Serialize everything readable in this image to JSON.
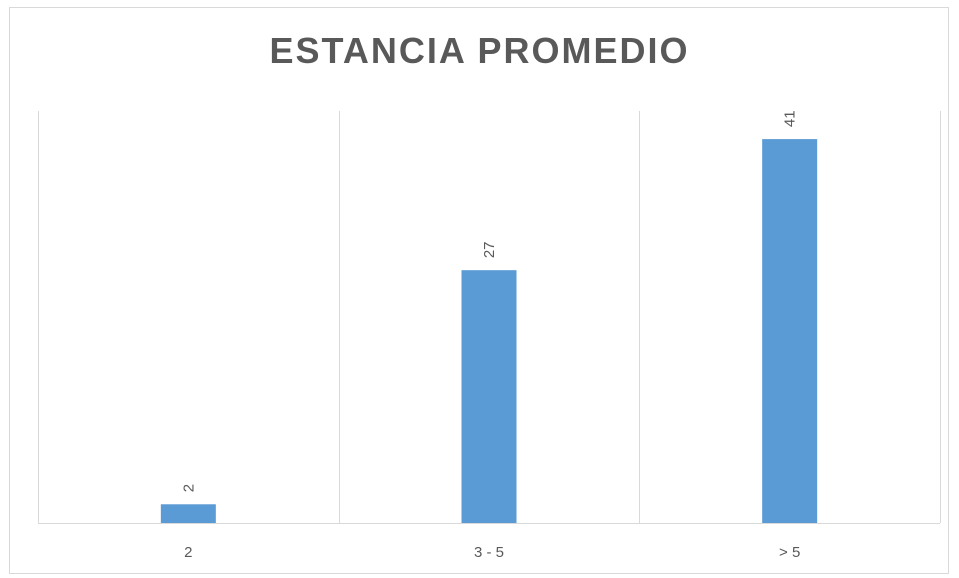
{
  "chart_data": {
    "type": "bar",
    "title": "ESTANCIA PROMEDIO",
    "categories": [
      "2",
      "3 - 5",
      "> 5"
    ],
    "values": [
      2,
      27,
      41
    ],
    "ylim": [
      0,
      44
    ],
    "grid": true,
    "data_labels": true,
    "bar_color": "#5b9bd5",
    "grid_color": "#d9d9d9",
    "label_color": "#595959"
  }
}
